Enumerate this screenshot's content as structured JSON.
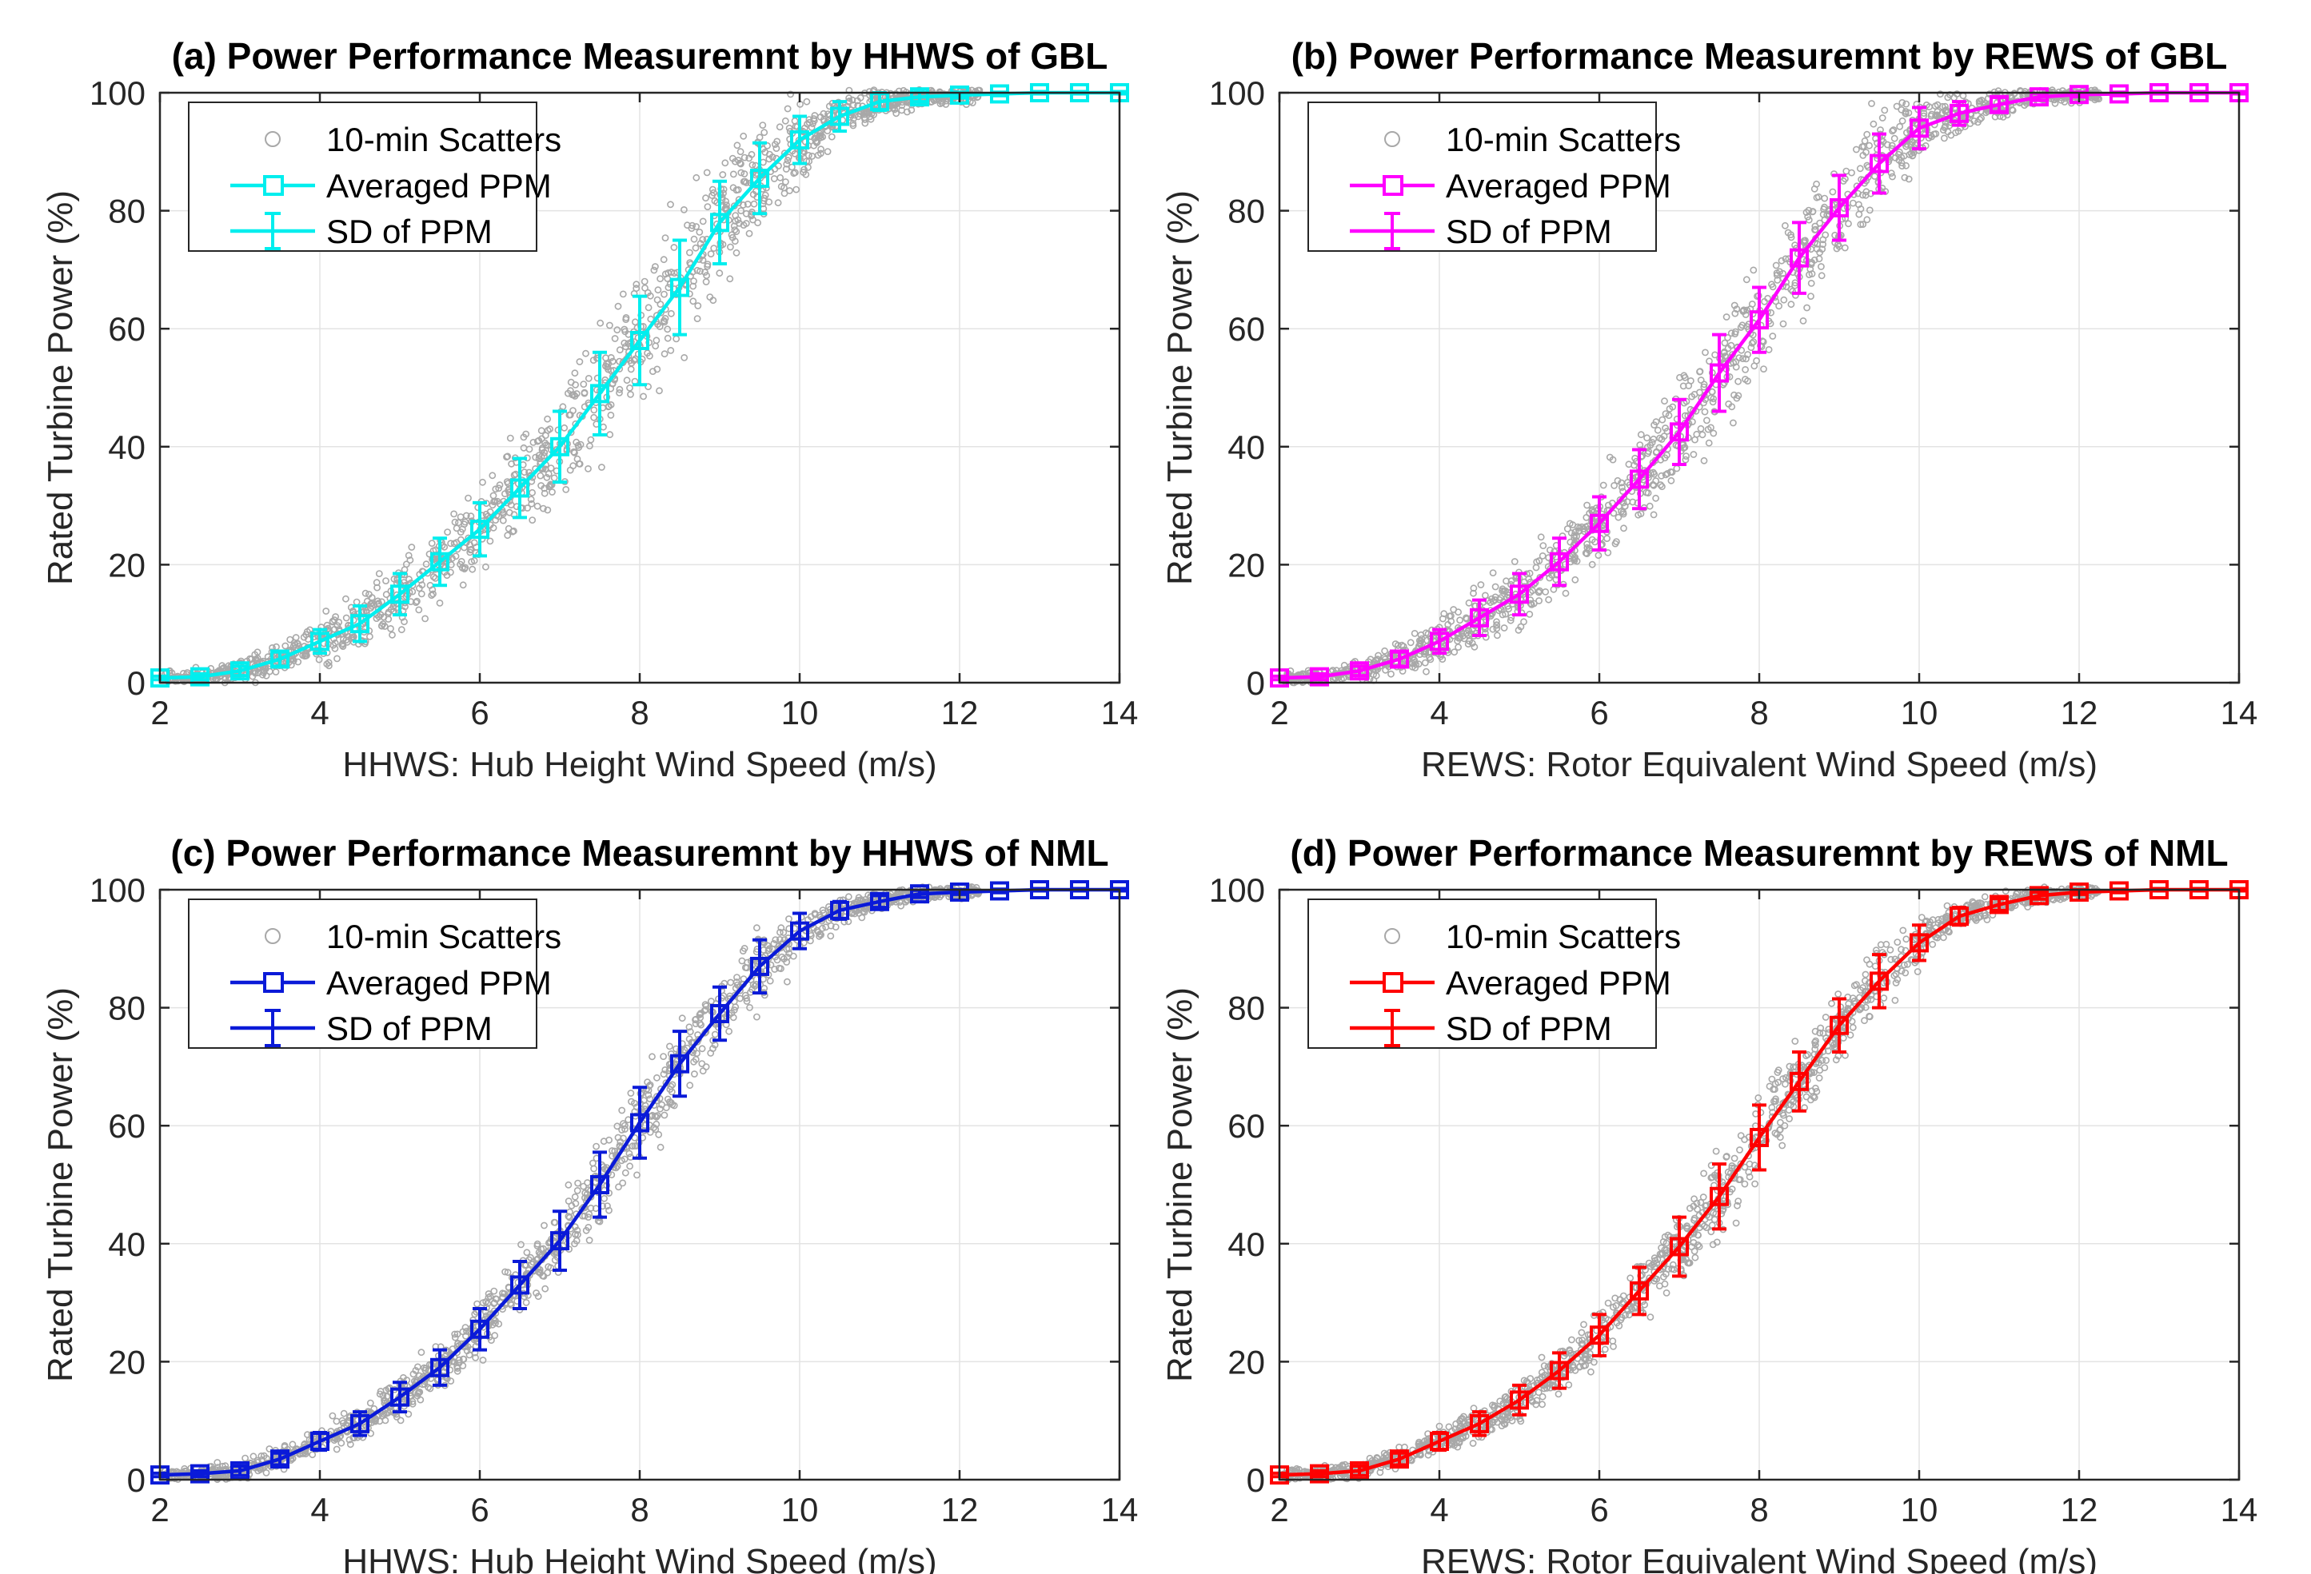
{
  "chart_data": [
    {
      "type": "scatter",
      "title": "(a) Power Performance Measuremnt by HHWS of GBL",
      "xlabel": "HHWS: Hub Height Wind Speed (m/s)",
      "ylabel": "Rated Turbine Power (%)",
      "xlim": [
        2,
        14
      ],
      "ylim": [
        0,
        100
      ],
      "xticks": [
        "2",
        "4",
        "6",
        "8",
        "10",
        "12",
        "14"
      ],
      "yticks": [
        "0",
        "20",
        "40",
        "60",
        "80",
        "100"
      ],
      "grid": true,
      "legend_position": "top-left",
      "color": "#00eeee",
      "legend": [
        "10-min Scatters",
        "Averaged PPM",
        "SD of PPM"
      ],
      "x": [
        2,
        2.5,
        3,
        3.5,
        4,
        4.5,
        5,
        5.5,
        6,
        6.5,
        7,
        7.5,
        8,
        8.5,
        9,
        9.5,
        10,
        10.5,
        11,
        11.5,
        12,
        12.5,
        13,
        13.5,
        14
      ],
      "mean": [
        0.8,
        1.0,
        2.0,
        4.0,
        7.0,
        10.0,
        15.0,
        20.5,
        26.0,
        33.0,
        40.0,
        49.0,
        58.0,
        67.0,
        78.0,
        85.5,
        92.0,
        96.0,
        98.5,
        99.3,
        99.6,
        99.8,
        100.0,
        100.0,
        100.0
      ],
      "sd": [
        0.3,
        0.5,
        0.8,
        1.2,
        2.0,
        3.0,
        3.5,
        4.0,
        4.5,
        5.0,
        6.0,
        7.0,
        7.5,
        8.0,
        7.0,
        6.0,
        4.0,
        2.5,
        1.5,
        0.8,
        0.5,
        0.3,
        0.2,
        0.2,
        0.2
      ],
      "scatter_spread": 1.0
    },
    {
      "type": "scatter",
      "title": "(b) Power Performance Measuremnt by REWS of GBL",
      "xlabel": "REWS: Rotor Equivalent Wind Speed (m/s)",
      "ylabel": "Rated Turbine Power (%)",
      "xlim": [
        2,
        14
      ],
      "ylim": [
        0,
        100
      ],
      "xticks": [
        "2",
        "4",
        "6",
        "8",
        "10",
        "12",
        "14"
      ],
      "yticks": [
        "0",
        "20",
        "40",
        "60",
        "80",
        "100"
      ],
      "grid": true,
      "legend_position": "top-left",
      "color": "#ff00ff",
      "legend": [
        "10-min Scatters",
        "Averaged PPM",
        "SD of PPM"
      ],
      "x": [
        2,
        2.5,
        3,
        3.5,
        4,
        4.5,
        5,
        5.5,
        6,
        6.5,
        7,
        7.5,
        8,
        8.5,
        9,
        9.5,
        10,
        10.5,
        11,
        11.5,
        12,
        12.5,
        13,
        13.5,
        14
      ],
      "mean": [
        0.8,
        1.0,
        2.0,
        4.0,
        7.0,
        11.0,
        15.0,
        20.5,
        27.0,
        34.5,
        42.5,
        52.5,
        61.5,
        72.0,
        80.5,
        88.0,
        94.0,
        96.5,
        98.0,
        99.3,
        99.7,
        99.8,
        100.0,
        100.0,
        100.0
      ],
      "sd": [
        0.3,
        0.5,
        0.8,
        1.2,
        2.0,
        3.0,
        3.5,
        4.0,
        4.5,
        5.0,
        5.5,
        6.5,
        5.5,
        6.0,
        5.5,
        5.0,
        3.5,
        2.0,
        1.2,
        0.6,
        0.4,
        0.3,
        0.2,
        0.2,
        0.2
      ],
      "scatter_spread": 1.0
    },
    {
      "type": "scatter",
      "title": "(c) Power Performance Measuremnt by HHWS of NML",
      "xlabel": "HHWS: Hub Height Wind Speed (m/s)",
      "ylabel": "Rated Turbine Power (%)",
      "xlim": [
        2,
        14
      ],
      "ylim": [
        0,
        100
      ],
      "xticks": [
        "2",
        "4",
        "6",
        "8",
        "10",
        "12",
        "14"
      ],
      "yticks": [
        "0",
        "20",
        "40",
        "60",
        "80",
        "100"
      ],
      "grid": true,
      "legend_position": "top-left",
      "color": "#0a1ad8",
      "legend": [
        "10-min Scatters",
        "Averaged PPM",
        "SD of PPM"
      ],
      "x": [
        2,
        2.5,
        3,
        3.5,
        4,
        4.5,
        5,
        5.5,
        6,
        6.5,
        7,
        7.5,
        8,
        8.5,
        9,
        9.5,
        10,
        10.5,
        11,
        11.5,
        12,
        12.5,
        13,
        13.5,
        14
      ],
      "mean": [
        0.8,
        1.0,
        1.5,
        3.5,
        6.5,
        9.5,
        14.0,
        19.0,
        25.5,
        33.0,
        40.5,
        50.0,
        60.5,
        70.5,
        79.0,
        87.0,
        93.0,
        96.5,
        98.0,
        99.3,
        99.6,
        99.8,
        100.0,
        100.0,
        100.0
      ],
      "sd": [
        0.3,
        0.5,
        0.8,
        1.0,
        1.5,
        2.0,
        2.5,
        3.0,
        3.5,
        4.0,
        5.0,
        5.5,
        6.0,
        5.5,
        4.5,
        4.5,
        3.0,
        1.5,
        1.0,
        0.6,
        0.4,
        0.3,
        0.2,
        0.2,
        0.2
      ],
      "scatter_spread": 0.75
    },
    {
      "type": "scatter",
      "title": "(d) Power Performance Measuremnt by REWS of NML",
      "xlabel": "REWS: Rotor Equivalent Wind Speed (m/s)",
      "ylabel": "Rated Turbine Power (%)",
      "xlim": [
        2,
        14
      ],
      "ylim": [
        0,
        100
      ],
      "xticks": [
        "2",
        "4",
        "6",
        "8",
        "10",
        "12",
        "14"
      ],
      "yticks": [
        "0",
        "20",
        "40",
        "60",
        "80",
        "100"
      ],
      "grid": true,
      "legend_position": "top-left",
      "color": "#ff0000",
      "legend": [
        "10-min Scatters",
        "Averaged PPM",
        "SD of PPM"
      ],
      "x": [
        2,
        2.5,
        3,
        3.5,
        4,
        4.5,
        5,
        5.5,
        6,
        6.5,
        7,
        7.5,
        8,
        8.5,
        9,
        9.5,
        10,
        10.5,
        11,
        11.5,
        12,
        12.5,
        13,
        13.5,
        14
      ],
      "mean": [
        0.8,
        1.0,
        1.5,
        3.5,
        6.5,
        9.5,
        13.5,
        18.5,
        24.5,
        32.0,
        39.5,
        48.0,
        58.0,
        67.5,
        77.0,
        84.5,
        91.0,
        95.5,
        97.5,
        99.0,
        99.6,
        99.8,
        100.0,
        100.0,
        100.0
      ],
      "sd": [
        0.3,
        0.5,
        0.8,
        1.0,
        1.5,
        2.0,
        2.5,
        3.0,
        3.5,
        4.0,
        5.0,
        5.5,
        5.5,
        5.0,
        4.5,
        4.5,
        3.0,
        1.5,
        1.0,
        0.6,
        0.4,
        0.3,
        0.2,
        0.2,
        0.2
      ],
      "scatter_spread": 0.75
    }
  ]
}
